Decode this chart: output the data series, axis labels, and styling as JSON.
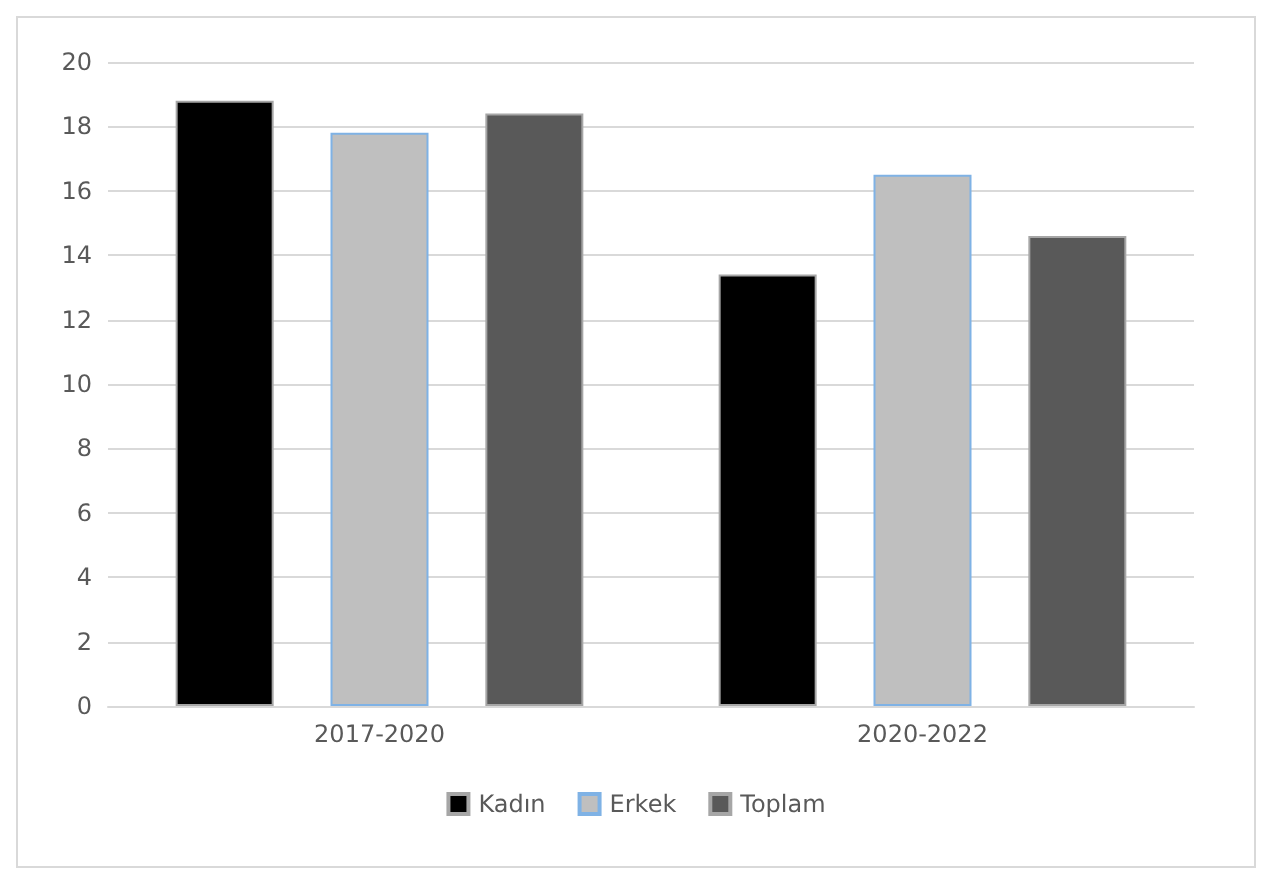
{
  "chart_data": {
    "type": "bar",
    "categories": [
      "2017-2020",
      "2020-2022"
    ],
    "series": [
      {
        "name": "Kadın",
        "color": "#000000",
        "values": [
          18.8,
          13.4
        ]
      },
      {
        "name": "Erkek",
        "color": "#bfbfbf",
        "values": [
          17.8,
          16.5
        ]
      },
      {
        "name": "Toplam",
        "color": "#595959",
        "values": [
          18.4,
          14.6
        ]
      }
    ],
    "ylim": [
      0,
      20
    ],
    "yticks": [
      0,
      2,
      4,
      6,
      8,
      10,
      12,
      14,
      16,
      18,
      20
    ],
    "grid": "y",
    "legend": "bottom"
  }
}
